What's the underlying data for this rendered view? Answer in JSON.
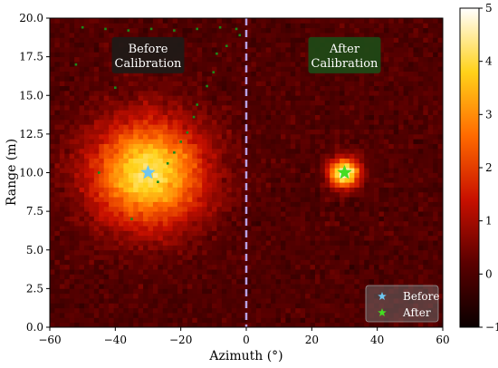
{
  "chart_data": {
    "type": "heatmap",
    "xlabel": "Azimuth (°)",
    "ylabel": "Range (m)",
    "xlim": [
      -60,
      60
    ],
    "ylim": [
      0,
      20
    ],
    "x_ticks": [
      -60,
      -40,
      -20,
      0,
      20,
      40,
      60
    ],
    "y_ticks": [
      0.0,
      2.5,
      5.0,
      7.5,
      10.0,
      12.5,
      15.0,
      17.5,
      20.0
    ],
    "colorbar": {
      "range": [
        -1,
        5
      ],
      "ticks": [
        -1,
        0,
        1,
        2,
        3,
        4,
        5
      ],
      "colormap": "hot"
    },
    "grid_cells": {
      "azimuth": 80,
      "range": 64
    },
    "sources": [
      {
        "name": "before",
        "azimuth": -30,
        "range": 10,
        "peak": 4.2,
        "spread_deg": 12,
        "spread_m": 2.4
      },
      {
        "name": "after",
        "azimuth": 30,
        "range": 10,
        "peak": 5.0,
        "spread_deg": 3.2,
        "spread_m": 0.65
      }
    ],
    "divider_azimuth": 0,
    "markers": [
      {
        "label": "Before",
        "azimuth": -30,
        "range": 10,
        "color": "#6ec6f0"
      },
      {
        "label": "After",
        "azimuth": 30,
        "range": 10,
        "color": "#44dd22"
      }
    ],
    "trail": {
      "color": "#1a8a1a"
    },
    "annotations": [
      {
        "text_lines": [
          "Before",
          "Calibration"
        ],
        "azimuth": -30,
        "range": 17.6,
        "bg": "#1e1a17"
      },
      {
        "text_lines": [
          "After",
          "Calibration"
        ],
        "azimuth": 30,
        "range": 17.6,
        "bg": "#1d4a16"
      }
    ],
    "legend": {
      "position": "bottom-right",
      "entries": [
        "Before",
        "After"
      ]
    }
  }
}
